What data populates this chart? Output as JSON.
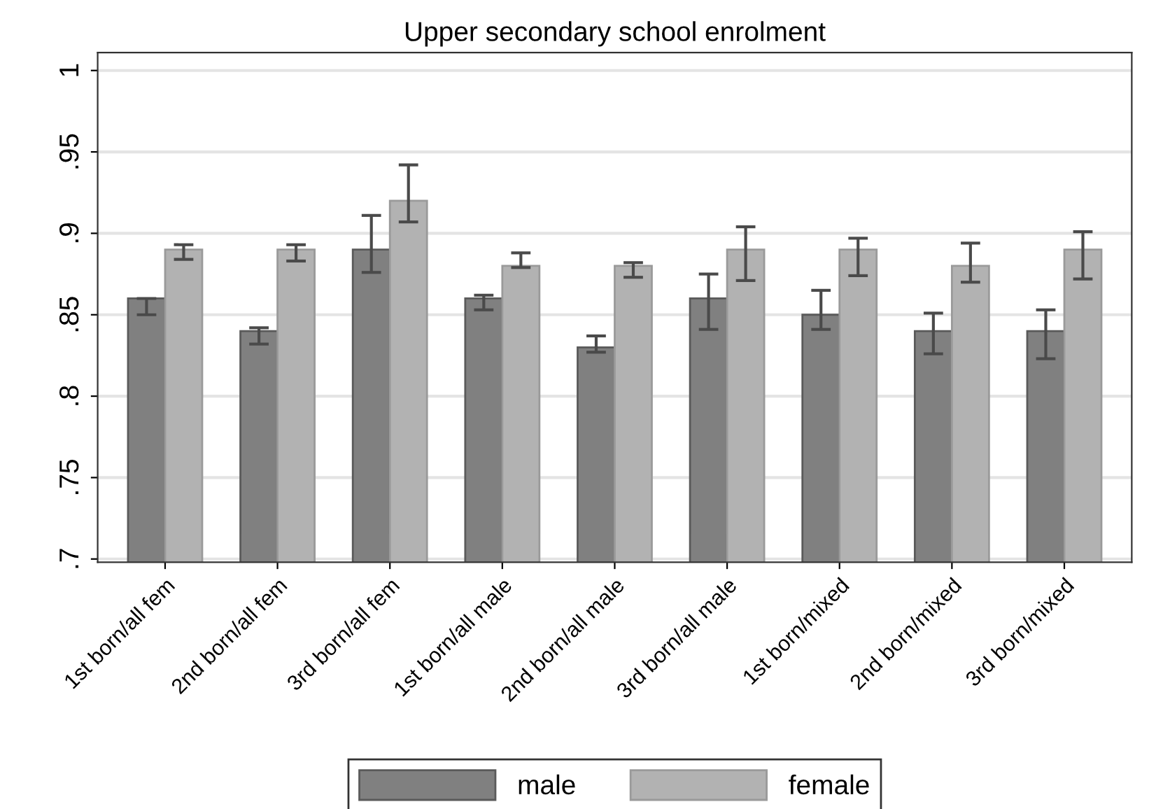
{
  "chart_data": {
    "type": "bar",
    "title": "Upper secondary school enrolment",
    "categories": [
      "1st born/all fem",
      "2nd born/all fem",
      "3rd born/all fem",
      "1st born/all male",
      "2nd born/all male",
      "3rd born/all male",
      "1st born/mixed",
      "2nd born/mixed",
      "3rd born/mixed"
    ],
    "series": [
      {
        "name": "male",
        "color": "#808080",
        "values": [
          0.86,
          0.84,
          0.89,
          0.86,
          0.83,
          0.86,
          0.85,
          0.84,
          0.84
        ],
        "errors": [
          [
            0.85,
            0.86
          ],
          [
            0.832,
            0.842
          ],
          [
            0.876,
            0.911
          ],
          [
            0.853,
            0.862
          ],
          [
            0.827,
            0.837
          ],
          [
            0.841,
            0.875
          ],
          [
            0.841,
            0.865
          ],
          [
            0.826,
            0.851
          ],
          [
            0.823,
            0.853
          ]
        ]
      },
      {
        "name": "female",
        "color": "#b2b2b2",
        "values": [
          0.89,
          0.89,
          0.92,
          0.88,
          0.88,
          0.89,
          0.89,
          0.88,
          0.89
        ],
        "errors": [
          [
            0.884,
            0.893
          ],
          [
            0.883,
            0.893
          ],
          [
            0.907,
            0.942
          ],
          [
            0.879,
            0.888
          ],
          [
            0.873,
            0.882
          ],
          [
            0.871,
            0.904
          ],
          [
            0.874,
            0.897
          ],
          [
            0.87,
            0.894
          ],
          [
            0.872,
            0.901
          ]
        ]
      }
    ],
    "ylim": [
      0.698,
      1.011
    ],
    "yticks": [
      {
        "value": 0.7,
        "label": ".7"
      },
      {
        "value": 0.75,
        "label": ".75"
      },
      {
        "value": 0.8,
        "label": ".8"
      },
      {
        "value": 0.85,
        "label": ".85"
      },
      {
        "value": 0.9,
        "label": ".9"
      },
      {
        "value": 0.95,
        "label": ".95"
      },
      {
        "value": 1,
        "label": "1"
      }
    ],
    "grid": "y",
    "legend": "bottom"
  }
}
